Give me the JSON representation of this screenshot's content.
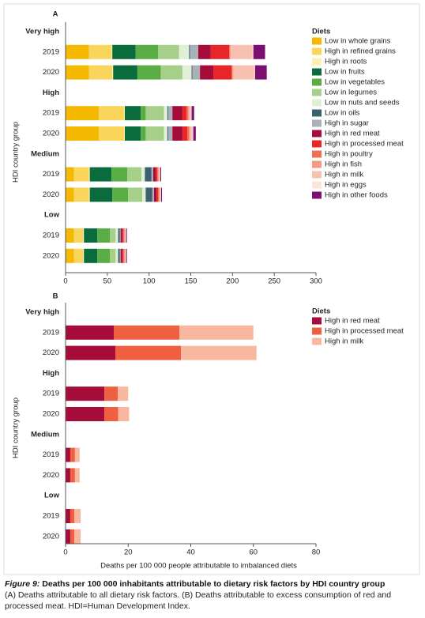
{
  "chart_data": [
    {
      "type": "bar",
      "title": "A",
      "ylabel": "HDI country group",
      "legend_title": "Diets",
      "groups": [
        "Very high",
        "High",
        "Medium",
        "Low"
      ],
      "categories": [
        "2019",
        "2020",
        "2019",
        "2020",
        "2019",
        "2020",
        "2019",
        "2020"
      ],
      "xlim": [
        0,
        300
      ],
      "xticks": [
        0,
        50,
        100,
        150,
        200,
        250,
        300
      ],
      "series": [
        {
          "name": "Low in whole grains",
          "color": "#f5b800",
          "values": [
            28,
            28,
            40,
            40,
            10,
            10,
            10,
            10
          ]
        },
        {
          "name": "High in refined grains",
          "color": "#fad55c",
          "values": [
            27,
            28,
            30,
            30,
            18,
            18,
            11,
            11
          ]
        },
        {
          "name": "High in roots",
          "color": "#fdf0b0",
          "values": [
            1,
            1,
            1,
            1,
            1,
            1,
            1,
            1
          ]
        },
        {
          "name": "Low in fruits",
          "color": "#0a6b3c",
          "values": [
            28,
            29,
            19,
            19,
            26,
            27,
            16,
            16
          ]
        },
        {
          "name": "Low in vegetables",
          "color": "#5aad45",
          "values": [
            27,
            28,
            6,
            6,
            19,
            19,
            15,
            15
          ]
        },
        {
          "name": "Low in legumes",
          "color": "#a6d08a",
          "values": [
            25,
            26,
            22,
            22,
            17,
            17,
            7,
            7
          ]
        },
        {
          "name": "Low in nuts and seeds",
          "color": "#e0efd5",
          "values": [
            12,
            11,
            4,
            4,
            4,
            4,
            3,
            3
          ]
        },
        {
          "name": "Low in oils",
          "color": "#3d6070",
          "values": [
            1,
            1,
            1,
            1,
            8,
            8,
            2,
            2
          ]
        },
        {
          "name": "High in sugar",
          "color": "#a8b0b8",
          "values": [
            10,
            9,
            5,
            5,
            2,
            2,
            1,
            1
          ]
        },
        {
          "name": "High in red meat",
          "color": "#a50c3a",
          "values": [
            15,
            16,
            12,
            12,
            3,
            3,
            2,
            2
          ]
        },
        {
          "name": "High in processed meat",
          "color": "#e8262a",
          "values": [
            22,
            22,
            5,
            6,
            2,
            2,
            1,
            1
          ]
        },
        {
          "name": "High in poultry",
          "color": "#f07050",
          "values": [
            1,
            1,
            2,
            2,
            1,
            1,
            1,
            1
          ]
        },
        {
          "name": "High in fish",
          "color": "#f59a80",
          "values": [
            1,
            1,
            1,
            1,
            1,
            1,
            1,
            1
          ]
        },
        {
          "name": "High in milk",
          "color": "#f8c0b0",
          "values": [
            26,
            25,
            2,
            3,
            1,
            1,
            1,
            1
          ]
        },
        {
          "name": "High in eggs",
          "color": "#fde3d8",
          "values": [
            1,
            1,
            1,
            1,
            0.5,
            0.5,
            0.5,
            0.5
          ]
        },
        {
          "name": "High in other foods",
          "color": "#7b1070",
          "values": [
            14,
            14,
            3,
            3,
            1,
            1,
            1,
            1
          ]
        }
      ]
    },
    {
      "type": "bar",
      "title": "B",
      "ylabel": "HDI country group",
      "legend_title": "Diets",
      "xlabel": "Deaths per 100 000 people attributable to imbalanced diets",
      "groups": [
        "Very high",
        "High",
        "Medium",
        "Low"
      ],
      "categories": [
        "2019",
        "2020",
        "2019",
        "2020",
        "2019",
        "2020",
        "2019",
        "2020"
      ],
      "xlim": [
        0,
        80
      ],
      "xticks": [
        0,
        20,
        40,
        60,
        80
      ],
      "series": [
        {
          "name": "High in red meat",
          "color": "#a50c3a",
          "values": [
            15.4,
            15.9,
            12.4,
            12.4,
            1.5,
            1.5,
            1.5,
            1.5
          ]
        },
        {
          "name": "High in processed meat",
          "color": "#ee6040",
          "values": [
            21,
            21,
            4.3,
            4.4,
            1.5,
            1.5,
            1.3,
            1.3
          ]
        },
        {
          "name": "High in milk",
          "color": "#f8b8a0",
          "values": [
            23.6,
            24.1,
            3.3,
            3.5,
            1.5,
            1.5,
            2,
            2
          ]
        }
      ]
    }
  ],
  "caption": {
    "label": "Figure 9:",
    "title": "Deaths per 100 000 inhabitants attributable to dietary risk factors by HDI country group",
    "text": "(A) Deaths attributable to all dietary risk factors. (B) Deaths attributable to excess consumption of red and processed meat. HDI=Human Development Index."
  }
}
